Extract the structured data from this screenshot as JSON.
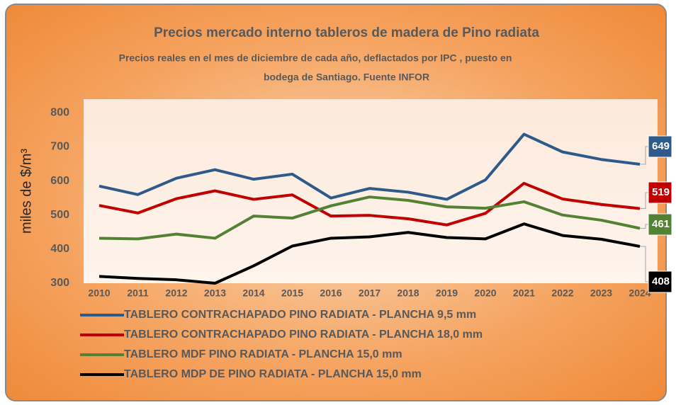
{
  "chart_data": {
    "type": "line",
    "title": "Precios  mercado interno tableros de madera de Pino radiata",
    "subtitle": [
      "Precios reales en el mes de diciembre  de cada año, deflactados por IPC , puesto en",
      "bodega de Santiago. Fuente INFOR"
    ],
    "y_axis_label": "miles de $/m³",
    "categories": [
      "2010",
      "2011",
      "2012",
      "2013",
      "2014",
      "2015",
      "2016",
      "2017",
      "2018",
      "2019",
      "2020",
      "2021",
      "2022",
      "2023",
      "2024"
    ],
    "series": [
      {
        "name": "TABLERO CONTRACHAPADO PINO RADIATA - PLANCHA 9,5 mm",
        "color": "#2e5a8a",
        "values": [
          585,
          560,
          608,
          633,
          605,
          620,
          550,
          578,
          567,
          546,
          603,
          737,
          685,
          663,
          649
        ]
      },
      {
        "name": "TABLERO CONTRACHAPADO PINO RADIATA - PLANCHA 18,0 mm",
        "color": "#c00000",
        "values": [
          528,
          506,
          548,
          571,
          546,
          559,
          497,
          499,
          489,
          471,
          505,
          593,
          547,
          531,
          519
        ]
      },
      {
        "name": "TABLERO MDF PINO RADIATA - PLANCHA 15,0 mm",
        "color": "#548235",
        "values": [
          432,
          430,
          444,
          432,
          497,
          491,
          527,
          553,
          543,
          524,
          520,
          539,
          500,
          485,
          461
        ]
      },
      {
        "name": "TABLERO MDP DE PINO RADIATA - PLANCHA 15,0 mm",
        "color": "#000000",
        "values": [
          320,
          314,
          310,
          300,
          351,
          409,
          432,
          436,
          449,
          434,
          430,
          474,
          440,
          429,
          408
        ]
      }
    ],
    "ylim": [
      300,
      840
    ],
    "yticks": [
      300,
      400,
      500,
      600,
      700,
      800
    ],
    "grid": false
  }
}
